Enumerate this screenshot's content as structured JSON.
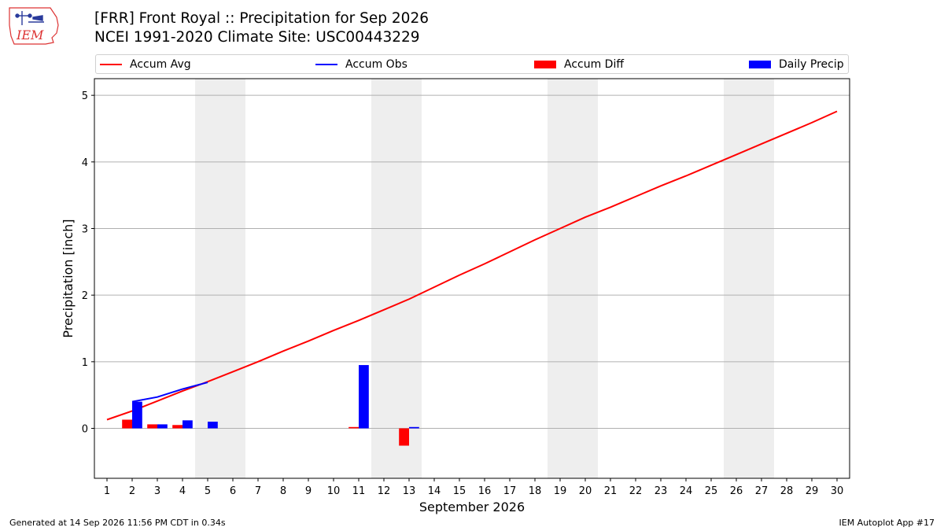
{
  "header": {
    "title_line1": "[FRR] Front Royal :: Precipitation for Sep 2026",
    "title_line2": "NCEI 1991-2020 Climate Site: USC00443229"
  },
  "logo": {
    "text": "IEM"
  },
  "legend": [
    {
      "label": "Accum Avg",
      "kind": "line",
      "color": "#ff0000"
    },
    {
      "label": "Accum Obs",
      "kind": "line",
      "color": "#0000ff"
    },
    {
      "label": "Accum Diff",
      "kind": "rect",
      "color": "#ff0000"
    },
    {
      "label": "Daily Precip",
      "kind": "rect",
      "color": "#0000ff"
    }
  ],
  "footer": {
    "left": "Generated at 14 Sep 2026 11:56 PM CDT in 0.34s",
    "right": "IEM Autoplot App #17"
  },
  "chart_data": {
    "type": "bar",
    "xlabel": "September 2026",
    "ylabel": "Precipitation [inch]",
    "xlim": [
      0.5,
      30.5
    ],
    "ylim": [
      -0.75,
      5.25
    ],
    "x_ticks": [
      1,
      2,
      3,
      4,
      5,
      6,
      7,
      8,
      9,
      10,
      11,
      12,
      13,
      14,
      15,
      16,
      17,
      18,
      19,
      20,
      21,
      22,
      23,
      24,
      25,
      26,
      27,
      28,
      29,
      30
    ],
    "y_ticks": [
      0,
      1,
      2,
      3,
      4,
      5
    ],
    "grid": "horizontal",
    "legend_position": "top",
    "weekend_bands": [
      [
        4.5,
        6.5
      ],
      [
        11.5,
        13.5
      ],
      [
        18.5,
        20.5
      ],
      [
        25.5,
        27.5
      ]
    ],
    "series": [
      {
        "name": "Accum Avg",
        "type": "line",
        "color": "#ff0000",
        "x": [
          1,
          2,
          3,
          4,
          5,
          6,
          7,
          8,
          9,
          10,
          11,
          12,
          13,
          14,
          15,
          16,
          17,
          18,
          19,
          20,
          21,
          22,
          23,
          24,
          25,
          26,
          27,
          28,
          29,
          30
        ],
        "values": [
          0.13,
          0.26,
          0.41,
          0.56,
          0.7,
          0.85,
          1.0,
          1.16,
          1.31,
          1.47,
          1.62,
          1.78,
          1.94,
          2.12,
          2.3,
          2.47,
          2.65,
          2.83,
          3.0,
          3.17,
          3.32,
          3.48,
          3.64,
          3.79,
          3.95,
          4.11,
          4.27,
          4.43,
          4.59,
          4.76
        ]
      },
      {
        "name": "Accum Obs",
        "type": "line",
        "color": "#0000ff",
        "x": [
          2,
          3,
          4,
          5
        ],
        "values": [
          0.4,
          0.47,
          0.59,
          0.69
        ]
      },
      {
        "name": "Accum Diff",
        "type": "bar",
        "color": "#ff0000",
        "x": [
          2,
          3,
          4,
          11,
          13
        ],
        "values": [
          0.13,
          0.06,
          0.05,
          0.02,
          -0.26
        ]
      },
      {
        "name": "Daily Precip",
        "type": "bar",
        "color": "#0000ff",
        "x": [
          2,
          3,
          4,
          5,
          11,
          13
        ],
        "values": [
          0.4,
          0.06,
          0.12,
          0.1,
          0.95,
          0.02
        ]
      }
    ]
  }
}
